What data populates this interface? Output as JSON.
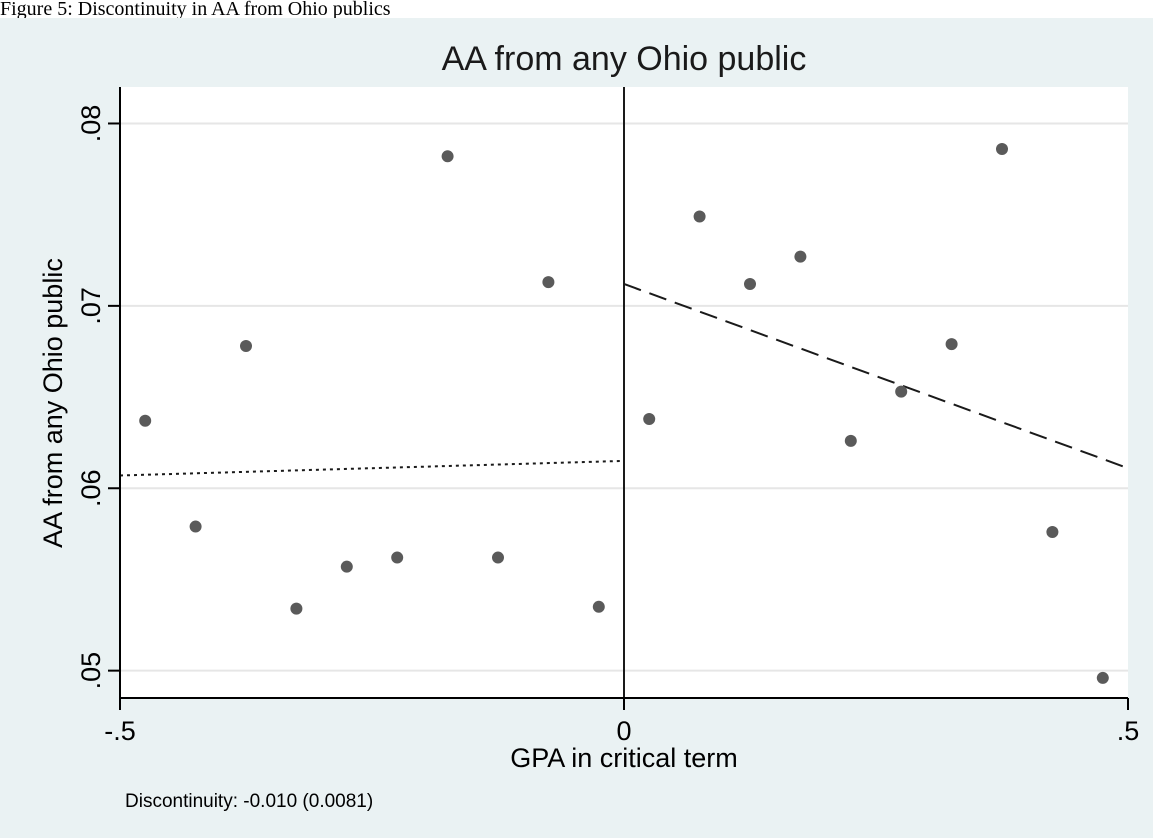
{
  "page_caption": "Figure 5: Discontinuity in AA from Ohio publics",
  "chart_data": {
    "type": "scatter",
    "title": "AA from any Ohio public",
    "xlabel": "GPA in critical term",
    "ylabel": "AA from any Ohio public",
    "xlim": [
      -0.5,
      0.5
    ],
    "ylim": [
      0.0485,
      0.082
    ],
    "x_ticks": [
      -0.5,
      0,
      0.5
    ],
    "x_tick_labels": [
      "-.5",
      "0",
      ".5"
    ],
    "y_ticks": [
      0.05,
      0.06,
      0.07,
      0.08
    ],
    "y_tick_labels": [
      ".05",
      ".06",
      ".07",
      ".08"
    ],
    "grid": true,
    "cutoff_x": 0,
    "points": [
      {
        "x": -0.475,
        "y": 0.0637
      },
      {
        "x": -0.425,
        "y": 0.0579
      },
      {
        "x": -0.375,
        "y": 0.0678
      },
      {
        "x": -0.325,
        "y": 0.0534
      },
      {
        "x": -0.275,
        "y": 0.0557
      },
      {
        "x": -0.225,
        "y": 0.0562
      },
      {
        "x": -0.175,
        "y": 0.0782
      },
      {
        "x": -0.125,
        "y": 0.0562
      },
      {
        "x": -0.075,
        "y": 0.0713
      },
      {
        "x": -0.025,
        "y": 0.0535
      },
      {
        "x": 0.025,
        "y": 0.0638
      },
      {
        "x": 0.075,
        "y": 0.0749
      },
      {
        "x": 0.125,
        "y": 0.0712
      },
      {
        "x": 0.175,
        "y": 0.0727
      },
      {
        "x": 0.225,
        "y": 0.0626
      },
      {
        "x": 0.275,
        "y": 0.0653
      },
      {
        "x": 0.325,
        "y": 0.0679
      },
      {
        "x": 0.375,
        "y": 0.0786
      },
      {
        "x": 0.425,
        "y": 0.0576
      },
      {
        "x": 0.475,
        "y": 0.0496
      }
    ],
    "fit_left": {
      "style": "dotted",
      "x": [
        -0.5,
        0
      ],
      "y": [
        0.0607,
        0.0615
      ]
    },
    "fit_right": {
      "style": "dashed",
      "x": [
        0,
        0.5
      ],
      "y": [
        0.0712,
        0.0611
      ]
    },
    "annotation": "Discontinuity: -0.010 (0.0081)"
  },
  "colors": {
    "background": "#eaf2f3",
    "plot_area": "#ffffff",
    "marker": "#5a5a5a",
    "line": "#1a1a1a"
  }
}
